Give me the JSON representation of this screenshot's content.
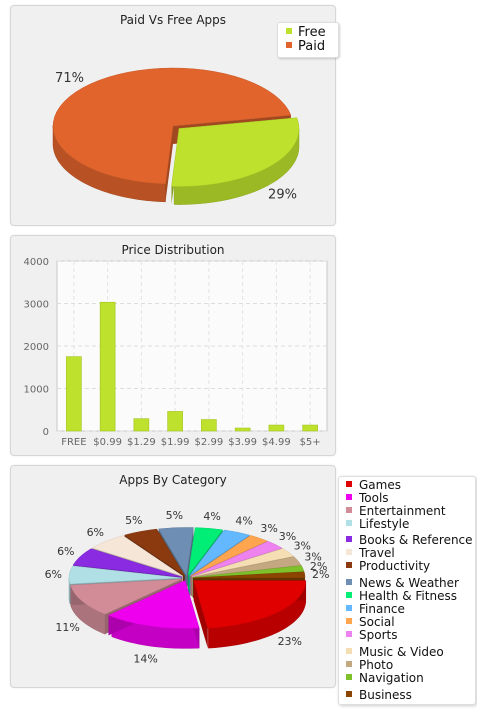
{
  "charts": {
    "paid_free": {
      "title": "Paid Vs Free Apps"
    },
    "price": {
      "title": "Price Distribution"
    },
    "category": {
      "title": "Apps By Category"
    }
  },
  "chart_data": [
    {
      "type": "pie",
      "title": "Paid Vs Free Apps",
      "labels": [
        "Free",
        "Paid"
      ],
      "values": [
        29,
        71
      ],
      "value_labels": [
        "29%",
        "71%"
      ],
      "colors": [
        "#bde12c",
        "#e0642c"
      ],
      "legend": "top-right",
      "style": "3d, Free slice exploded"
    },
    {
      "type": "bar",
      "title": "Price Distribution",
      "categories": [
        "FREE",
        "$0.99",
        "$1.29",
        "$1.99",
        "$2.99",
        "$3.99",
        "$4.99",
        "$5+"
      ],
      "values": [
        1750,
        3030,
        290,
        460,
        270,
        70,
        140,
        140
      ],
      "ylim": [
        0,
        4000
      ],
      "yticks": [
        0,
        1000,
        2000,
        3000,
        4000
      ],
      "color": "#bde12c",
      "grid": true
    },
    {
      "type": "pie",
      "title": "Apps By Category",
      "labels": [
        "Games",
        "Tools",
        "Entertainment",
        "Lifestyle",
        "Books & Reference",
        "Travel",
        "Productivity",
        "News & Weather",
        "Health & Fitness",
        "Finance",
        "Social",
        "Sports",
        "Music & Video",
        "Photo",
        "Navigation",
        "Business"
      ],
      "values": [
        23,
        14,
        11,
        6,
        6,
        6,
        5,
        5,
        4,
        4,
        3,
        3,
        3,
        3,
        2,
        2
      ],
      "value_labels": [
        "23%",
        "14%",
        "11%",
        "6%",
        "6%",
        "6%",
        "5%",
        "5%",
        "4%",
        "4%",
        "3%",
        "3%",
        "3%",
        "3%",
        "2%",
        "2%"
      ],
      "colors": [
        "#e00000",
        "#ee00ee",
        "#d18c97",
        "#b0e0e6",
        "#8a2be2",
        "#f5e6d8",
        "#8b3a10",
        "#6e8fb3",
        "#00ee76",
        "#63b8ff",
        "#ffa54f",
        "#ee82ee",
        "#f5deb3",
        "#c4a882",
        "#7ec12a",
        "#8b4500"
      ],
      "legend": "right",
      "style": "3d exploded"
    }
  ]
}
